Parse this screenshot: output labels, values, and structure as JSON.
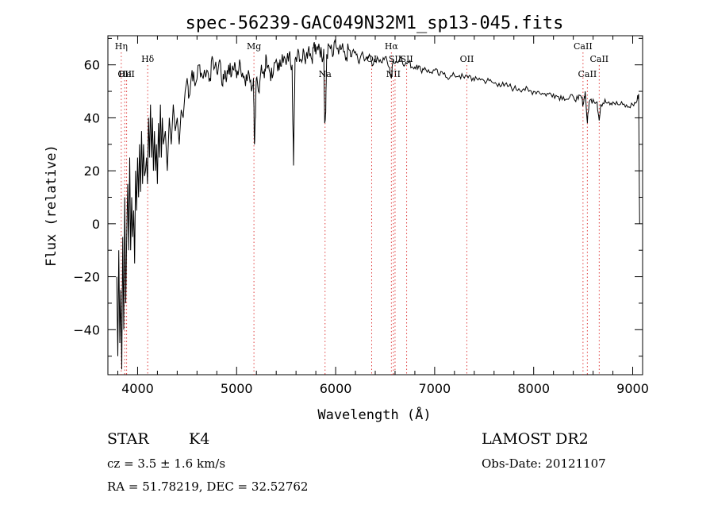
{
  "chart_data": {
    "type": "line",
    "title": "spec-56239-GAC049N32M1_sp13-045.fits",
    "xlabel": "Wavelength (Å)",
    "ylabel": "Flux (relative)",
    "xlim": [
      3700,
      9100
    ],
    "ylim": [
      -57,
      71
    ],
    "xticks": [
      {
        "v": 4000,
        "label": "4000"
      },
      {
        "v": 5000,
        "label": "5000"
      },
      {
        "v": 6000,
        "label": "6000"
      },
      {
        "v": 7000,
        "label": "7000"
      },
      {
        "v": 8000,
        "label": "8000"
      },
      {
        "v": 9000,
        "label": "9000"
      }
    ],
    "yticks": [
      {
        "v": -40,
        "label": "−40"
      },
      {
        "v": -20,
        "label": "−20"
      },
      {
        "v": 0,
        "label": "0"
      },
      {
        "v": 20,
        "label": "20"
      },
      {
        "v": 40,
        "label": "40"
      },
      {
        "v": 60,
        "label": "60"
      }
    ],
    "series": [
      {
        "points": [
          [
            3790,
            -20
          ],
          [
            3800,
            -50
          ],
          [
            3810,
            -10
          ],
          [
            3820,
            -45
          ],
          [
            3830,
            -25
          ],
          [
            3840,
            -55
          ],
          [
            3850,
            -5
          ],
          [
            3860,
            -40
          ],
          [
            3870,
            10
          ],
          [
            3880,
            -30
          ],
          [
            3890,
            -5
          ],
          [
            3900,
            15
          ],
          [
            3910,
            -10
          ],
          [
            3920,
            25
          ],
          [
            3930,
            -10
          ],
          [
            3940,
            10
          ],
          [
            3950,
            -5
          ],
          [
            3960,
            5
          ],
          [
            3970,
            -15
          ],
          [
            3980,
            20
          ],
          [
            3990,
            5
          ],
          [
            4000,
            25
          ],
          [
            4010,
            10
          ],
          [
            4020,
            30
          ],
          [
            4030,
            12
          ],
          [
            4040,
            35
          ],
          [
            4050,
            15
          ],
          [
            4060,
            30
          ],
          [
            4070,
            18
          ],
          [
            4080,
            20
          ],
          [
            4090,
            25
          ],
          [
            4100,
            15
          ],
          [
            4110,
            40
          ],
          [
            4120,
            25
          ],
          [
            4130,
            45
          ],
          [
            4140,
            25
          ],
          [
            4150,
            40
          ],
          [
            4160,
            20
          ],
          [
            4170,
            35
          ],
          [
            4180,
            20
          ],
          [
            4190,
            30
          ],
          [
            4200,
            15
          ],
          [
            4210,
            38
          ],
          [
            4220,
            25
          ],
          [
            4230,
            45
          ],
          [
            4240,
            25
          ],
          [
            4250,
            40
          ],
          [
            4260,
            30
          ],
          [
            4280,
            35
          ],
          [
            4300,
            20
          ],
          [
            4320,
            40
          ],
          [
            4340,
            30
          ],
          [
            4360,
            45
          ],
          [
            4380,
            35
          ],
          [
            4400,
            40
          ],
          [
            4420,
            30
          ],
          [
            4440,
            43
          ],
          [
            4460,
            40
          ],
          [
            4480,
            50
          ],
          [
            4500,
            55
          ],
          [
            4520,
            48
          ],
          [
            4550,
            58
          ],
          [
            4580,
            52
          ],
          [
            4620,
            60
          ],
          [
            4650,
            56
          ],
          [
            4700,
            58
          ],
          [
            4730,
            55
          ],
          [
            4760,
            62
          ],
          [
            4800,
            57
          ],
          [
            4830,
            62
          ],
          [
            4860,
            52
          ],
          [
            4880,
            58
          ],
          [
            4900,
            55
          ],
          [
            4920,
            60
          ],
          [
            4950,
            56
          ],
          [
            4980,
            61
          ],
          [
            5000,
            55
          ],
          [
            5030,
            62
          ],
          [
            5060,
            57
          ],
          [
            5090,
            52
          ],
          [
            5120,
            58
          ],
          [
            5150,
            50
          ],
          [
            5170,
            55
          ],
          [
            5180,
            30
          ],
          [
            5190,
            40
          ],
          [
            5200,
            55
          ],
          [
            5220,
            50
          ],
          [
            5250,
            60
          ],
          [
            5280,
            55
          ],
          [
            5300,
            63
          ],
          [
            5330,
            58
          ],
          [
            5360,
            55
          ],
          [
            5400,
            62
          ],
          [
            5430,
            58
          ],
          [
            5460,
            64
          ],
          [
            5500,
            60
          ],
          [
            5530,
            64
          ],
          [
            5560,
            60
          ],
          [
            5575,
            22
          ],
          [
            5590,
            62
          ],
          [
            5620,
            66
          ],
          [
            5650,
            62
          ],
          [
            5680,
            65
          ],
          [
            5700,
            63
          ],
          [
            5730,
            67
          ],
          [
            5760,
            62
          ],
          [
            5780,
            68
          ],
          [
            5800,
            64
          ],
          [
            5830,
            68
          ],
          [
            5860,
            63
          ],
          [
            5880,
            66
          ],
          [
            5890,
            38
          ],
          [
            5900,
            42
          ],
          [
            5910,
            64
          ],
          [
            5940,
            67
          ],
          [
            5970,
            63
          ],
          [
            6000,
            68
          ],
          [
            6030,
            64
          ],
          [
            6060,
            66
          ],
          [
            6100,
            62
          ],
          [
            6130,
            66
          ],
          [
            6160,
            63
          ],
          [
            6200,
            65
          ],
          [
            6230,
            61
          ],
          [
            6260,
            64
          ],
          [
            6300,
            62
          ],
          [
            6340,
            64
          ],
          [
            6380,
            60
          ],
          [
            6420,
            63
          ],
          [
            6460,
            61
          ],
          [
            6500,
            63
          ],
          [
            6540,
            59
          ],
          [
            6563,
            55
          ],
          [
            6580,
            62
          ],
          [
            6620,
            61
          ],
          [
            6660,
            63
          ],
          [
            6700,
            60
          ],
          [
            6740,
            61
          ],
          [
            6780,
            59
          ],
          [
            6820,
            60
          ],
          [
            6860,
            58
          ],
          [
            6900,
            59
          ],
          [
            6950,
            57
          ],
          [
            7000,
            58
          ],
          [
            7050,
            56
          ],
          [
            7100,
            57
          ],
          [
            7150,
            55
          ],
          [
            7200,
            56
          ],
          [
            7250,
            56
          ],
          [
            7300,
            55
          ],
          [
            7350,
            56
          ],
          [
            7400,
            54
          ],
          [
            7450,
            55
          ],
          [
            7500,
            54
          ],
          [
            7550,
            54
          ],
          [
            7600,
            53
          ],
          [
            7650,
            53
          ],
          [
            7700,
            52
          ],
          [
            7750,
            52
          ],
          [
            7800,
            51
          ],
          [
            7850,
            51
          ],
          [
            7900,
            51
          ],
          [
            7950,
            50
          ],
          [
            8000,
            50
          ],
          [
            8050,
            50
          ],
          [
            8100,
            49
          ],
          [
            8150,
            49
          ],
          [
            8200,
            49
          ],
          [
            8250,
            48
          ],
          [
            8300,
            48
          ],
          [
            8350,
            47
          ],
          [
            8400,
            48
          ],
          [
            8450,
            47
          ],
          [
            8480,
            48
          ],
          [
            8500,
            45
          ],
          [
            8520,
            50
          ],
          [
            8542,
            38
          ],
          [
            8560,
            46
          ],
          [
            8600,
            47
          ],
          [
            8640,
            46
          ],
          [
            8662,
            39
          ],
          [
            8680,
            45
          ],
          [
            8720,
            47
          ],
          [
            8760,
            46
          ],
          [
            8800,
            46
          ],
          [
            8850,
            45
          ],
          [
            8900,
            45
          ],
          [
            8950,
            44
          ],
          [
            9000,
            45
          ],
          [
            9040,
            46
          ],
          [
            9060,
            49
          ],
          [
            9070,
            0
          ]
        ]
      }
    ],
    "lines": [
      {
        "v": 3835,
        "label": "Hη",
        "row": 0
      },
      {
        "v": 3870,
        "label": "OII",
        "row": 2
      },
      {
        "v": 3889,
        "label": "HeI",
        "row": 2
      },
      {
        "v": 4102,
        "label": "Hδ",
        "row": 1
      },
      {
        "v": 5175,
        "label": "Mg",
        "row": 0
      },
      {
        "v": 5893,
        "label": "Na",
        "row": 2
      },
      {
        "v": 6364,
        "label": "OI",
        "row": 1
      },
      {
        "v": 6563,
        "label": "Hα",
        "row": 0
      },
      {
        "v": 6583,
        "label": "NII",
        "row": 2
      },
      {
        "v": 6600,
        "label": "SII",
        "row": 1
      },
      {
        "v": 6717,
        "label": "SII",
        "row": 1
      },
      {
        "v": 7325,
        "label": "OII",
        "row": 1
      },
      {
        "v": 8498,
        "label": "CaII",
        "row": 0
      },
      {
        "v": 8542,
        "label": "CaII",
        "row": 2
      },
      {
        "v": 8662,
        "label": "CaII",
        "row": 1
      }
    ]
  },
  "info": {
    "class": "STAR",
    "subclass": "K4",
    "survey": "LAMOST DR2",
    "cz": "cz = 3.5 ± 1.6 km/s",
    "obs_date": "Obs-Date: 20121107",
    "coords": "RA =  51.78219, DEC =  32.52762"
  }
}
